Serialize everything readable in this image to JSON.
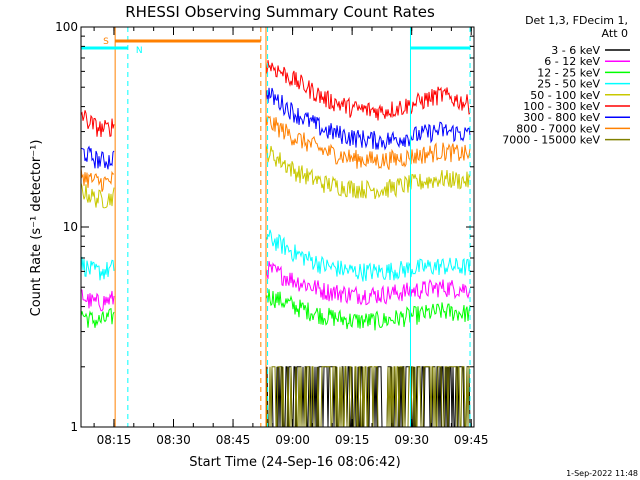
{
  "chart_data": {
    "type": "line",
    "title": "RHESSI Observing Summary Count Rates",
    "xlabel": "Start Time (24-Sep-16 08:06:42)",
    "ylabel": "Count Rate (s⁻¹ detector⁻¹)",
    "yscale": "log",
    "ylim": [
      1,
      100
    ],
    "xlim_minutes": [
      0,
      99
    ],
    "x_ticks": [
      {
        "label": "08:15",
        "minute": 8.3
      },
      {
        "label": "08:30",
        "minute": 23.3
      },
      {
        "label": "08:45",
        "minute": 38.3
      },
      {
        "label": "09:00",
        "minute": 53.3
      },
      {
        "label": "09:15",
        "minute": 68.3
      },
      {
        "label": "09:30",
        "minute": 83.3
      },
      {
        "label": "09:45",
        "minute": 98.3
      }
    ],
    "y_ticks": [
      {
        "label": "1",
        "value": 1
      },
      {
        "label": "10",
        "value": 10
      },
      {
        "label": "100",
        "value": 100
      }
    ],
    "legend_header": [
      "Det 1,3, FDecim 1,",
      "Att 0"
    ],
    "series": [
      {
        "name": "3 - 6 keV",
        "color": "#000000",
        "pre": [],
        "post": [
          2.0,
          2.0,
          2.0,
          2.0,
          2.0
        ]
      },
      {
        "name": "6 - 12 keV",
        "color": "#ff00ff",
        "pre": [
          4.6,
          4.3,
          4.2,
          4.2,
          4.3,
          4.4
        ],
        "post": [
          6.2,
          5.4,
          4.8,
          4.6,
          4.6,
          4.8,
          5.0,
          4.9
        ]
      },
      {
        "name": "12 - 25 keV",
        "color": "#00ff00",
        "pre": [
          3.7,
          3.5,
          3.4,
          3.4,
          3.5,
          3.6
        ],
        "post": [
          4.6,
          4.0,
          3.6,
          3.4,
          3.4,
          3.6,
          3.8,
          3.7
        ]
      },
      {
        "name": "25 - 50 keV",
        "color": "#00ffff",
        "pre": [
          6.6,
          6.2,
          6.0,
          6.0,
          6.1,
          6.3
        ],
        "post": [
          9.0,
          7.4,
          6.4,
          6.0,
          6.0,
          6.2,
          6.4,
          6.3
        ]
      },
      {
        "name": "50 - 100 keV",
        "color": "#c8c800",
        "pre": [
          15.5,
          14.6,
          14.0,
          13.8,
          13.8,
          14.5
        ],
        "post": [
          24.0,
          19.0,
          16.5,
          15.6,
          15.4,
          16.5,
          17.5,
          17.0
        ]
      },
      {
        "name": "100 - 300 keV",
        "color": "#ff0000",
        "pre": [
          37.0,
          34.0,
          32.0,
          31.0,
          31.0,
          33.0
        ],
        "post": [
          66.0,
          54.0,
          44.0,
          39.0,
          38.0,
          41.0,
          46.0,
          41.0
        ]
      },
      {
        "name": "300 - 800 keV",
        "color": "#0000ff",
        "pre": [
          24.0,
          23.0,
          22.0,
          21.5,
          21.5,
          22.5
        ],
        "post": [
          47.0,
          37.0,
          30.5,
          28.0,
          27.0,
          28.5,
          30.5,
          29.0
        ]
      },
      {
        "name": "800 - 7000 keV",
        "color": "#ff8000",
        "pre": [
          18.5,
          17.5,
          17.0,
          16.8,
          16.8,
          17.5
        ],
        "post": [
          34.0,
          28.0,
          24.0,
          22.0,
          21.5,
          22.5,
          24.0,
          23.0
        ]
      },
      {
        "name": "7000 - 15000 keV",
        "color": "#808000",
        "pre": [],
        "post": [
          2.0,
          2.0,
          2.0,
          2.0,
          2.0
        ]
      }
    ],
    "segments_minutes": {
      "pre": [
        0,
        8.5
      ],
      "post": [
        46.6,
        98.0
      ]
    },
    "flags": [
      {
        "label": "S",
        "color": "#ff8000",
        "start": 8.6,
        "end": 45.3,
        "level": 1
      },
      {
        "label": "N",
        "color": "#00ffff",
        "start": 0,
        "end": 11.8,
        "level": 0
      },
      {
        "label": "",
        "color": "#00ffff",
        "start": 83.0,
        "end": 98.0,
        "level": 0
      }
    ],
    "markers": [
      {
        "minute": 8.6,
        "color": "#ff8000",
        "style": "solid"
      },
      {
        "minute": 11.8,
        "color": "#00ffff",
        "style": "dashed"
      },
      {
        "minute": 45.3,
        "color": "#ff8000",
        "style": "dashed"
      },
      {
        "minute": 46.6,
        "color": "#ff8000",
        "style": "solid"
      },
      {
        "minute": 47.0,
        "color": "#00ffff",
        "style": "dashed"
      },
      {
        "minute": 83.0,
        "color": "#00ffff",
        "style": "solid"
      },
      {
        "minute": 98.0,
        "color": "#00ffff",
        "style": "dashed"
      }
    ]
  },
  "footer": {
    "date_stamp": "1-Sep-2022 11:48"
  }
}
